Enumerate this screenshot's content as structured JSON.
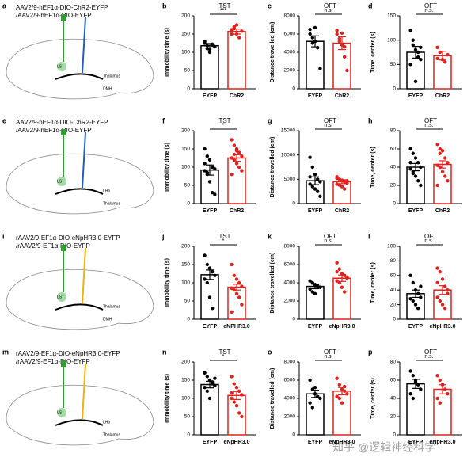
{
  "schematics": [
    {
      "letter": "a",
      "lines": [
        "AAV2/9-hEF1α-DIO-ChR2-EYFP",
        "/AAV2/9-hEF1α-DIO-EYFP"
      ],
      "labels": [
        "LS",
        "Thalamus",
        "DMH"
      ],
      "fiber_color": "#1f5fbf"
    },
    {
      "letter": "e",
      "lines": [
        "AAV2/9-hEF1α-DIO-ChR2-EYFP",
        "/AAV2/9-hEF1α-DIO-EYFP"
      ],
      "labels": [
        "LS",
        "LHb",
        "Thalamus"
      ],
      "fiber_color": "#1f5fbf"
    },
    {
      "letter": "i",
      "lines": [
        "rAAV2/9-EF1α-DIO-eNpHR3.0-EYFP",
        "/rAAV2/9-EF1α-DIO-EYFP"
      ],
      "labels": [
        "LS",
        "Thalamus",
        "DMH"
      ],
      "fiber_color": "#f0b400"
    },
    {
      "letter": "m",
      "lines": [
        "rAAV2/9-EF1α-DIO-eNpHR3.0-EYFP",
        "/rAAV2/9-EF1α-DIO-EYFP"
      ],
      "labels": [
        "LS",
        "LHb",
        "Thalamus"
      ],
      "fiber_color": "#f0b400"
    }
  ],
  "chart_data": [
    {
      "type": "bar",
      "letter": "b",
      "title": "TST",
      "ylabel": "Immobility time (s)",
      "categories": [
        "EYFP",
        "ChR2"
      ],
      "colors": [
        "#000000",
        "#e3201b"
      ],
      "values": [
        118,
        157
      ],
      "errors": [
        6,
        7
      ],
      "points": [
        [
          125,
          110,
          100,
          120,
          115,
          130,
          118,
          108,
          122
        ],
        [
          150,
          165,
          175,
          140,
          158,
          162,
          170,
          150
        ]
      ],
      "significance": "***",
      "ylim": [
        0,
        200
      ],
      "yticks": [
        0,
        50,
        100,
        150,
        200
      ]
    },
    {
      "type": "bar",
      "letter": "c",
      "title": "OFT",
      "ylabel": "Distance travelled (cm)",
      "categories": [
        "EYFP",
        "ChR2"
      ],
      "colors": [
        "#000000",
        "#e3201b"
      ],
      "values": [
        5200,
        5000
      ],
      "errors": [
        600,
        700
      ],
      "points": [
        [
          6500,
          5600,
          5200,
          4500,
          2200,
          6000,
          5000,
          6700
        ],
        [
          6000,
          5500,
          4800,
          3500,
          2000,
          6400,
          5200,
          6100,
          4600
        ]
      ],
      "significance": "n.s.",
      "ylim": [
        0,
        8000
      ],
      "yticks": [
        0,
        2000,
        4000,
        6000,
        8000
      ]
    },
    {
      "type": "bar",
      "letter": "d",
      "title": "OFT",
      "ylabel": "Time, center (s)",
      "categories": [
        "EYFP",
        "ChR2"
      ],
      "colors": [
        "#000000",
        "#e3201b"
      ],
      "values": [
        75,
        68
      ],
      "errors": [
        12,
        9
      ],
      "points": [
        [
          120,
          100,
          80,
          65,
          60,
          50,
          90,
          15,
          75,
          85
        ],
        [
          85,
          75,
          60,
          55,
          70,
          62
        ]
      ],
      "significance": "n.s.",
      "ylim": [
        0,
        150
      ],
      "yticks": [
        0,
        50,
        100,
        150
      ]
    },
    {
      "type": "bar",
      "letter": "f",
      "title": "TST",
      "ylabel": "Immobility time (s)",
      "categories": [
        "EYFP",
        "ChR2"
      ],
      "colors": [
        "#000000",
        "#e3201b"
      ],
      "values": [
        92,
        125
      ],
      "errors": [
        14,
        9
      ],
      "points": [
        [
          150,
          130,
          120,
          100,
          95,
          90,
          80,
          60,
          30,
          25,
          110,
          85
        ],
        [
          175,
          160,
          150,
          140,
          130,
          125,
          120,
          110,
          100,
          90,
          80,
          135,
          145
        ]
      ],
      "significance": "*",
      "ylim": [
        0,
        200
      ],
      "yticks": [
        0,
        50,
        100,
        150,
        200
      ]
    },
    {
      "type": "bar",
      "letter": "g",
      "title": "OFT",
      "ylabel": "Distance travelled (cm)",
      "categories": [
        "EYFP",
        "ChR2"
      ],
      "colors": [
        "#000000",
        "#e3201b"
      ],
      "values": [
        4700,
        4500
      ],
      "errors": [
        800,
        400
      ],
      "points": [
        [
          9500,
          7500,
          6000,
          5000,
          4500,
          4000,
          3500,
          3000,
          2500,
          1500,
          5500
        ],
        [
          5500,
          5000,
          4800,
          4500,
          4200,
          4000,
          3800,
          3500,
          3000,
          4700,
          5200
        ]
      ],
      "significance": "n.s.",
      "ylim": [
        0,
        15000
      ],
      "yticks": [
        0,
        5000,
        10000,
        15000
      ]
    },
    {
      "type": "bar",
      "letter": "h",
      "title": "OFT",
      "ylabel": "Time, center (s)",
      "categories": [
        "EYFP",
        "ChR2"
      ],
      "colors": [
        "#000000",
        "#e3201b"
      ],
      "values": [
        40,
        43
      ],
      "errors": [
        4,
        4
      ],
      "points": [
        [
          60,
          55,
          50,
          45,
          40,
          38,
          35,
          30,
          25,
          20,
          45,
          33
        ],
        [
          65,
          60,
          58,
          50,
          45,
          42,
          40,
          35,
          30,
          25,
          20,
          55
        ]
      ],
      "significance": "n.s.",
      "ylim": [
        0,
        80
      ],
      "yticks": [
        0,
        20,
        40,
        60,
        80
      ]
    },
    {
      "type": "bar",
      "letter": "j",
      "title": "TST",
      "ylabel": "Immobility time (s)",
      "categories": [
        "EYFP",
        "eNPHR3.0"
      ],
      "colors": [
        "#000000",
        "#e3201b"
      ],
      "values": [
        122,
        88
      ],
      "errors": [
        13,
        8
      ],
      "points": [
        [
          175,
          150,
          140,
          130,
          120,
          110,
          100,
          60,
          30
        ],
        [
          150,
          120,
          110,
          100,
          90,
          85,
          80,
          70,
          60,
          40,
          20
        ]
      ],
      "significance": "*",
      "ylim": [
        0,
        200
      ],
      "yticks": [
        0,
        50,
        100,
        150,
        200
      ]
    },
    {
      "type": "bar",
      "letter": "k",
      "title": "OFT",
      "ylabel": "Distance travelled (cm)",
      "categories": [
        "EYFP",
        "eNpHR3.0"
      ],
      "colors": [
        "#000000",
        "#e3201b"
      ],
      "values": [
        3600,
        4500
      ],
      "errors": [
        250,
        350
      ],
      "points": [
        [
          4200,
          4000,
          3800,
          3700,
          3500,
          3300,
          3000,
          2800,
          3600
        ],
        [
          6200,
          5500,
          5000,
          4800,
          4500,
          4200,
          4000,
          3500,
          3000,
          4600,
          5200
        ]
      ],
      "significance": "n.s.",
      "ylim": [
        0,
        8000
      ],
      "yticks": [
        0,
        2000,
        4000,
        6000,
        8000
      ]
    },
    {
      "type": "bar",
      "letter": "l",
      "title": "OFT",
      "ylabel": "Time, center (s)",
      "categories": [
        "EYFP",
        "eNpHR3.0"
      ],
      "colors": [
        "#000000",
        "#e3201b"
      ],
      "values": [
        35,
        40
      ],
      "errors": [
        5,
        6
      ],
      "points": [
        [
          60,
          50,
          40,
          35,
          30,
          28,
          25,
          20,
          15,
          45
        ],
        [
          70,
          65,
          55,
          45,
          40,
          30,
          25,
          20,
          15,
          35,
          50
        ]
      ],
      "significance": "n.s.",
      "ylim": [
        0,
        100
      ],
      "yticks": [
        0,
        20,
        40,
        60,
        80,
        100
      ]
    },
    {
      "type": "bar",
      "letter": "n",
      "title": "TST",
      "ylabel": "Immobility time (s)",
      "categories": [
        "EYFP",
        "eNpHR3.0"
      ],
      "colors": [
        "#000000",
        "#e3201b"
      ],
      "values": [
        138,
        108
      ],
      "errors": [
        9,
        11
      ],
      "points": [
        [
          170,
          160,
          150,
          140,
          135,
          130,
          120,
          100,
          145,
          155
        ],
        [
          160,
          140,
          130,
          120,
          110,
          100,
          90,
          80,
          60,
          50,
          115
        ]
      ],
      "significance": "*",
      "ylim": [
        0,
        200
      ],
      "yticks": [
        0,
        50,
        100,
        150,
        200
      ]
    },
    {
      "type": "bar",
      "letter": "o",
      "title": "OFT",
      "ylabel": "Distance travelled (cm)",
      "categories": [
        "EYFP",
        "eNpHR3.0"
      ],
      "colors": [
        "#000000",
        "#e3201b"
      ],
      "values": [
        4500,
        4800
      ],
      "errors": [
        400,
        400
      ],
      "points": [
        [
          6000,
          5000,
          4500,
          4200,
          4000,
          3500,
          3000,
          5200
        ],
        [
          6200,
          5500,
          5000,
          4800,
          4500,
          4200,
          4000,
          3500,
          5300
        ]
      ],
      "significance": "n.s.",
      "ylim": [
        0,
        8000
      ],
      "yticks": [
        0,
        2000,
        4000,
        6000,
        8000
      ]
    },
    {
      "type": "bar",
      "letter": "p",
      "title": "OFT",
      "ylabel": "Time, center (s)",
      "categories": [
        "EYFP",
        "eNpHR3.0"
      ],
      "colors": [
        "#000000",
        "#e3201b"
      ],
      "values": [
        56,
        50
      ],
      "errors": [
        5,
        5
      ],
      "points": [
        [
          70,
          65,
          60,
          55,
          50,
          45,
          40,
          58
        ],
        [
          65,
          60,
          55,
          50,
          45,
          40,
          35,
          55
        ]
      ],
      "significance": "n.s.",
      "ylim": [
        0,
        80
      ],
      "yticks": [
        0,
        20,
        40,
        60,
        80
      ]
    }
  ],
  "watermark": "知乎 @逻辑神经科学"
}
